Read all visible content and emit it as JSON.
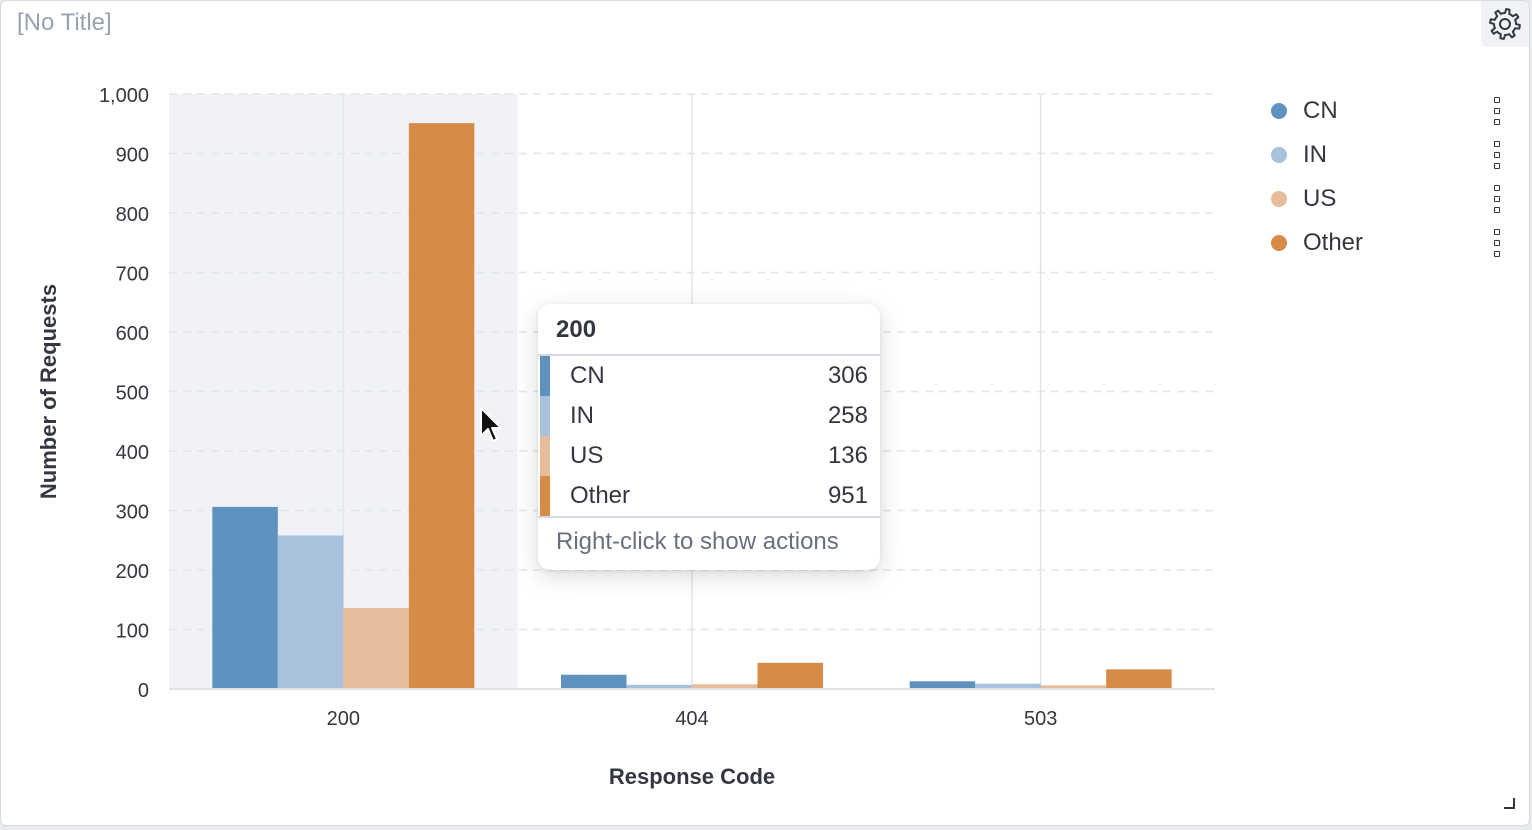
{
  "panel": {
    "title": "[No Title]"
  },
  "colors": {
    "CN": "#6092c0",
    "IN": "#a8c1dc",
    "US": "#e6bc9b",
    "Other": "#d68b46",
    "grid": "#e2e5ea",
    "highlight": "#f1f2f7"
  },
  "icons": {
    "settings": "gear-icon",
    "legend_menu": "vertical-dots-icon",
    "cursor": "mouse-pointer-icon",
    "resize": "resize-corner-icon"
  },
  "chart_data": {
    "type": "bar",
    "title": "[No Title]",
    "xlabel": "Response Code",
    "ylabel": "Number of Requests",
    "categories": [
      "200",
      "404",
      "503"
    ],
    "series": [
      {
        "name": "CN",
        "values": [
          306,
          24,
          13
        ]
      },
      {
        "name": "IN",
        "values": [
          258,
          7,
          9
        ]
      },
      {
        "name": "US",
        "values": [
          136,
          8,
          6
        ]
      },
      {
        "name": "Other",
        "values": [
          951,
          44,
          33
        ]
      }
    ],
    "ylim": [
      0,
      1000
    ],
    "yticks": [
      "0",
      "100",
      "200",
      "300",
      "400",
      "500",
      "600",
      "700",
      "800",
      "900",
      "1,000"
    ],
    "grid": true,
    "legend": "right",
    "highlighted_category": "200"
  },
  "tooltip": {
    "title": "200",
    "rows": [
      {
        "name": "CN",
        "value": "306"
      },
      {
        "name": "IN",
        "value": "258"
      },
      {
        "name": "US",
        "value": "136"
      },
      {
        "name": "Other",
        "value": "951"
      }
    ],
    "footer": "Right-click to show actions"
  }
}
